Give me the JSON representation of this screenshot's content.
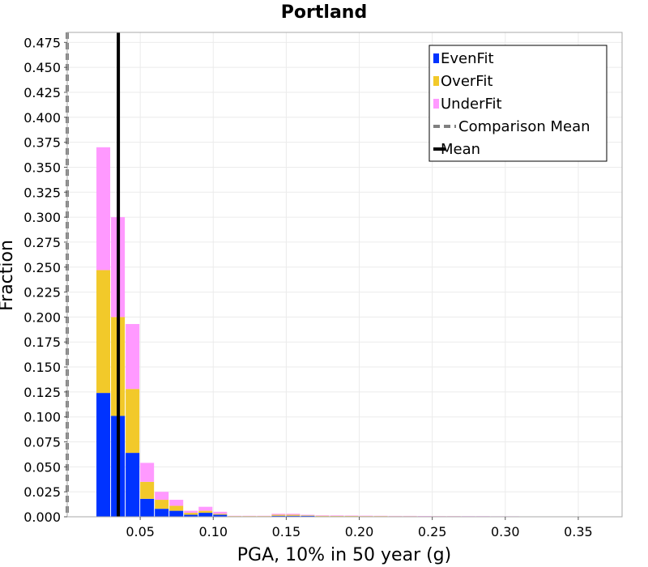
{
  "chart_data": {
    "type": "bar",
    "stacked": true,
    "title": "Portland",
    "xlabel": "PGA, 10% in 50 year (g)",
    "ylabel": "Fraction",
    "xlim": [
      0.0,
      0.38
    ],
    "ylim": [
      0.0,
      0.485
    ],
    "bin_width": 0.01,
    "grid": true,
    "legend_position": "top-right",
    "x_ticks": [
      "0.05",
      "0.10",
      "0.15",
      "0.20",
      "0.25",
      "0.30",
      "0.35"
    ],
    "y_ticks": [
      "0.000",
      "0.025",
      "0.050",
      "0.075",
      "0.100",
      "0.125",
      "0.150",
      "0.175",
      "0.200",
      "0.225",
      "0.250",
      "0.275",
      "0.300",
      "0.325",
      "0.350",
      "0.375",
      "0.400",
      "0.425",
      "0.450",
      "0.475"
    ],
    "bin_starts": [
      0.02,
      0.03,
      0.04,
      0.05,
      0.06,
      0.07,
      0.08,
      0.09,
      0.1,
      0.11,
      0.12,
      0.13,
      0.14,
      0.15,
      0.16,
      0.17,
      0.18,
      0.19,
      0.2,
      0.21,
      0.22,
      0.23,
      0.24,
      0.25,
      0.26,
      0.27,
      0.28,
      0.29,
      0.3,
      0.31,
      0.37
    ],
    "series": [
      {
        "name": "EvenFit",
        "color": "#0033ff",
        "values": [
          0.124,
          0.101,
          0.064,
          0.018,
          0.008,
          0.006,
          0.002,
          0.004,
          0.002,
          0.0004,
          0.0004,
          0.0004,
          0.001,
          0.001,
          0.001,
          0.0005,
          0.0005,
          0.0005,
          0.0004,
          0.0004,
          0.0003,
          0.0003,
          0.0003,
          0.0003,
          0.0003,
          0.0002,
          0.0002,
          0.0002,
          0.0002,
          0.0002,
          0.0001
        ]
      },
      {
        "name": "OverFit",
        "color": "#f2c92a",
        "values": [
          0.123,
          0.099,
          0.064,
          0.017,
          0.009,
          0.005,
          0.002,
          0.002,
          0.001,
          0.0003,
          0.0003,
          0.0003,
          0.001,
          0.001,
          0.0005,
          0.0005,
          0.0004,
          0.0004,
          0.0003,
          0.0003,
          0.0003,
          0.0003,
          0.0002,
          0.0002,
          0.0002,
          0.0002,
          0.0002,
          0.0001,
          0.0001,
          0.0001,
          0.0001
        ]
      },
      {
        "name": "UnderFit",
        "color": "#ff99ff",
        "values": [
          0.123,
          0.1,
          0.065,
          0.019,
          0.008,
          0.006,
          0.002,
          0.004,
          0.002,
          0.0003,
          0.0003,
          0.0003,
          0.001,
          0.001,
          0.0005,
          0.0005,
          0.0005,
          0.0004,
          0.0004,
          0.0003,
          0.0003,
          0.0003,
          0.0003,
          0.0002,
          0.0002,
          0.0002,
          0.0002,
          0.0002,
          0.0002,
          0.0001,
          0.0001
        ]
      }
    ],
    "reference_lines": [
      {
        "name": "Comparison Mean",
        "x": 0.0,
        "style": "dashed",
        "color": "#808080"
      },
      {
        "name": "Mean",
        "x": 0.035,
        "style": "solid",
        "color": "#000000"
      }
    ]
  }
}
